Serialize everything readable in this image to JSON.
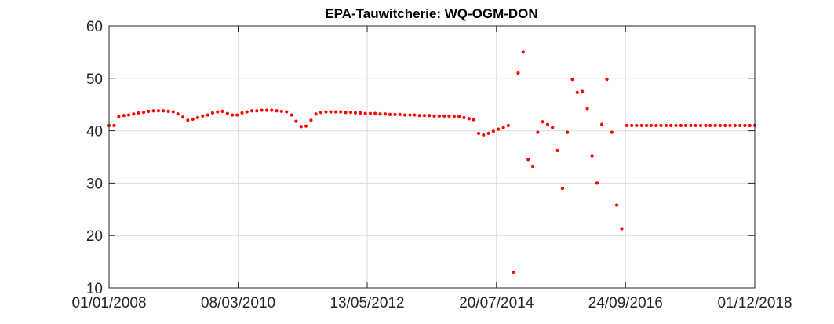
{
  "chart_data": {
    "type": "scatter",
    "title": "EPA-Tauwitcherie: WQ-OGM-DON",
    "xlabel": "",
    "ylabel": "",
    "x_axis_type": "date",
    "xlim": [
      "2008-01-01",
      "2018-12-01"
    ],
    "ylim": [
      10,
      60
    ],
    "x_ticks": [
      "2008-01-01",
      "2010-03-08",
      "2012-05-13",
      "2014-07-20",
      "2016-09-24",
      "2018-12-01"
    ],
    "x_tick_labels": [
      "01/01/2008",
      "08/03/2010",
      "13/05/2012",
      "20/07/2014",
      "24/09/2016",
      "01/12/2018"
    ],
    "y_ticks": [
      10,
      20,
      30,
      40,
      50,
      60
    ],
    "grid": true,
    "marker_color": "#ff0000",
    "series": [
      {
        "points": [
          [
            "2008-01-01",
            41.0
          ],
          [
            "2008-02-01",
            41.0
          ],
          [
            "2008-03-01",
            42.7
          ],
          [
            "2008-04-01",
            42.9
          ],
          [
            "2008-05-01",
            43.0
          ],
          [
            "2008-06-01",
            43.2
          ],
          [
            "2008-07-01",
            43.4
          ],
          [
            "2008-08-01",
            43.5
          ],
          [
            "2008-09-01",
            43.7
          ],
          [
            "2008-10-01",
            43.8
          ],
          [
            "2008-11-01",
            43.8
          ],
          [
            "2008-12-01",
            43.8
          ],
          [
            "2009-01-01",
            43.7
          ],
          [
            "2009-02-01",
            43.6
          ],
          [
            "2009-03-01",
            43.2
          ],
          [
            "2009-04-01",
            42.6
          ],
          [
            "2009-05-01",
            42.0
          ],
          [
            "2009-06-01",
            42.2
          ],
          [
            "2009-07-01",
            42.5
          ],
          [
            "2009-08-01",
            42.8
          ],
          [
            "2009-09-01",
            43.0
          ],
          [
            "2009-10-01",
            43.4
          ],
          [
            "2009-11-01",
            43.6
          ],
          [
            "2009-12-01",
            43.7
          ],
          [
            "2010-01-01",
            43.3
          ],
          [
            "2010-02-01",
            43.0
          ],
          [
            "2010-03-01",
            43.0
          ],
          [
            "2010-04-01",
            43.4
          ],
          [
            "2010-05-01",
            43.6
          ],
          [
            "2010-06-01",
            43.8
          ],
          [
            "2010-07-01",
            43.8
          ],
          [
            "2010-08-01",
            43.9
          ],
          [
            "2010-09-01",
            43.9
          ],
          [
            "2010-10-01",
            43.9
          ],
          [
            "2010-11-01",
            43.8
          ],
          [
            "2010-12-01",
            43.7
          ],
          [
            "2011-01-01",
            43.6
          ],
          [
            "2011-02-01",
            43.0
          ],
          [
            "2011-03-01",
            41.8
          ],
          [
            "2011-04-01",
            40.8
          ],
          [
            "2011-05-01",
            40.9
          ],
          [
            "2011-06-01",
            42.0
          ],
          [
            "2011-07-01",
            43.2
          ],
          [
            "2011-08-01",
            43.5
          ],
          [
            "2011-09-01",
            43.6
          ],
          [
            "2011-10-01",
            43.6
          ],
          [
            "2011-11-01",
            43.6
          ],
          [
            "2011-12-01",
            43.6
          ],
          [
            "2012-01-01",
            43.5
          ],
          [
            "2012-02-01",
            43.5
          ],
          [
            "2012-03-01",
            43.4
          ],
          [
            "2012-04-01",
            43.4
          ],
          [
            "2012-05-01",
            43.3
          ],
          [
            "2012-06-01",
            43.3
          ],
          [
            "2012-07-01",
            43.3
          ],
          [
            "2012-08-01",
            43.2
          ],
          [
            "2012-09-01",
            43.2
          ],
          [
            "2012-10-01",
            43.1
          ],
          [
            "2012-11-01",
            43.1
          ],
          [
            "2012-12-01",
            43.1
          ],
          [
            "2013-01-01",
            43.0
          ],
          [
            "2013-02-01",
            43.0
          ],
          [
            "2013-03-01",
            43.0
          ],
          [
            "2013-04-01",
            42.9
          ],
          [
            "2013-05-01",
            42.9
          ],
          [
            "2013-06-01",
            42.9
          ],
          [
            "2013-07-01",
            42.8
          ],
          [
            "2013-08-01",
            42.8
          ],
          [
            "2013-09-01",
            42.8
          ],
          [
            "2013-10-01",
            42.8
          ],
          [
            "2013-11-01",
            42.7
          ],
          [
            "2013-12-01",
            42.7
          ],
          [
            "2014-01-01",
            42.5
          ],
          [
            "2014-02-01",
            42.3
          ],
          [
            "2014-03-01",
            42.1
          ],
          [
            "2014-04-01",
            39.5
          ],
          [
            "2014-05-01",
            39.2
          ],
          [
            "2014-06-01",
            39.5
          ],
          [
            "2014-07-01",
            39.9
          ],
          [
            "2014-08-01",
            40.3
          ],
          [
            "2014-09-01",
            40.6
          ],
          [
            "2014-10-01",
            41.0
          ],
          [
            "2014-11-01",
            13.0
          ],
          [
            "2014-12-01",
            51.0
          ],
          [
            "2015-01-01",
            55.0
          ],
          [
            "2015-02-01",
            34.5
          ],
          [
            "2015-03-01",
            33.2
          ],
          [
            "2015-04-01",
            39.7
          ],
          [
            "2015-05-01",
            41.7
          ],
          [
            "2015-06-01",
            41.2
          ],
          [
            "2015-07-01",
            40.6
          ],
          [
            "2015-08-01",
            36.2
          ],
          [
            "2015-09-01",
            29.0
          ],
          [
            "2015-10-01",
            39.7
          ],
          [
            "2015-11-01",
            49.8
          ],
          [
            "2015-12-01",
            47.3
          ],
          [
            "2016-01-01",
            47.5
          ],
          [
            "2016-02-01",
            44.2
          ],
          [
            "2016-03-01",
            35.2
          ],
          [
            "2016-04-01",
            30.0
          ],
          [
            "2016-05-01",
            41.2
          ],
          [
            "2016-06-01",
            49.8
          ],
          [
            "2016-07-01",
            39.7
          ],
          [
            "2016-08-01",
            25.8
          ],
          [
            "2016-09-01",
            21.3
          ],
          [
            "2016-10-01",
            41.0
          ],
          [
            "2016-11-01",
            41.0
          ],
          [
            "2016-12-01",
            41.0
          ],
          [
            "2017-01-01",
            41.0
          ],
          [
            "2017-02-01",
            41.0
          ],
          [
            "2017-03-01",
            41.0
          ],
          [
            "2017-04-01",
            41.0
          ],
          [
            "2017-05-01",
            41.0
          ],
          [
            "2017-06-01",
            41.0
          ],
          [
            "2017-07-01",
            41.0
          ],
          [
            "2017-08-01",
            41.0
          ],
          [
            "2017-09-01",
            41.0
          ],
          [
            "2017-10-01",
            41.0
          ],
          [
            "2017-11-01",
            41.0
          ],
          [
            "2017-12-01",
            41.0
          ],
          [
            "2018-01-01",
            41.0
          ],
          [
            "2018-02-01",
            41.0
          ],
          [
            "2018-03-01",
            41.0
          ],
          [
            "2018-04-01",
            41.0
          ],
          [
            "2018-05-01",
            41.0
          ],
          [
            "2018-06-01",
            41.0
          ],
          [
            "2018-07-01",
            41.0
          ],
          [
            "2018-08-01",
            41.0
          ],
          [
            "2018-09-01",
            41.0
          ],
          [
            "2018-10-01",
            41.0
          ],
          [
            "2018-11-01",
            41.0
          ],
          [
            "2018-12-01",
            41.0
          ]
        ]
      }
    ]
  }
}
